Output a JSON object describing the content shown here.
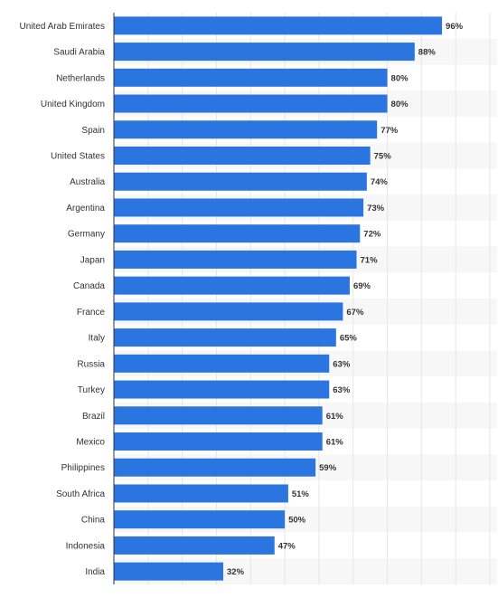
{
  "chart_data": {
    "type": "bar",
    "orientation": "horizontal",
    "title": "",
    "xlabel": "",
    "ylabel": "",
    "categories": [
      "United Arab Emirates",
      "Saudi Arabia",
      "Netherlands",
      "United Kingdom",
      "Spain",
      "United States",
      "Australia",
      "Argentina",
      "Germany",
      "Japan",
      "Canada",
      "France",
      "Italy",
      "Russia",
      "Turkey",
      "Brazil",
      "Mexico",
      "Philippines",
      "South Africa",
      "China",
      "Indonesia",
      "India"
    ],
    "values": [
      96,
      88,
      80,
      80,
      77,
      75,
      74,
      73,
      72,
      71,
      69,
      67,
      65,
      63,
      63,
      61,
      61,
      59,
      51,
      50,
      47,
      32
    ],
    "value_labels": [
      "96%",
      "88%",
      "80%",
      "80%",
      "77%",
      "75%",
      "74%",
      "73%",
      "72%",
      "71%",
      "69%",
      "67%",
      "65%",
      "63%",
      "63%",
      "61%",
      "61%",
      "59%",
      "51%",
      "50%",
      "47%",
      "32%"
    ],
    "xlim": [
      0,
      110
    ],
    "grid": true,
    "bar_color": "#2a75e0",
    "band_color": "#f7f7f7",
    "grid_color": "#e6e6e6",
    "axis_color": "#333333"
  }
}
